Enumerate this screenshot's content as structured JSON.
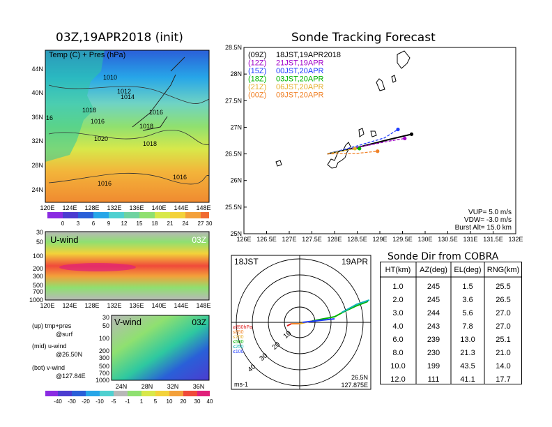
{
  "left": {
    "title": "03Z,19APR2018 (init)",
    "map": {
      "overlay_title": "Temp (C) + Pres (hPa)",
      "lat_ticks": [
        "44N",
        "40N",
        "36N",
        "32N",
        "28N",
        "24N"
      ],
      "lon_ticks": [
        "120E",
        "124E",
        "128E",
        "132E",
        "136E",
        "140E",
        "144E",
        "148E"
      ],
      "isobars": [
        "1010",
        "1012",
        "1014",
        "1018",
        "1016",
        "16",
        "1016",
        "1018",
        "1020",
        "1018",
        "1016",
        "1016"
      ],
      "colorbar": [
        "0",
        "3",
        "6",
        "9",
        "12",
        "15",
        "18",
        "21",
        "24",
        "27",
        "30"
      ]
    },
    "uwind": {
      "title": "U-wind",
      "time": "03Z",
      "p_ticks": [
        "30",
        "50",
        "100",
        "200",
        "300",
        "500",
        "700",
        "1000"
      ],
      "lon_ticks": [
        "120E",
        "124E",
        "128E",
        "132E",
        "136E",
        "140E",
        "144E",
        "148E"
      ]
    },
    "vwind": {
      "title": "V-wind",
      "time": "03Z",
      "p_ticks": [
        "30",
        "50",
        "100",
        "200",
        "300",
        "500",
        "700",
        "1000"
      ],
      "lat_ticks": [
        "24N",
        "28N",
        "32N",
        "36N"
      ]
    },
    "notes": [
      "(up) tmp+pres",
      "@surf",
      "(mid) u-wind",
      "@26.50N",
      "(bot) v-wind",
      "@127.84E"
    ],
    "wind_colorbar": [
      "-40",
      "-30",
      "-20",
      "-10",
      "-5",
      "-1",
      "1",
      "5",
      "10",
      "20",
      "30",
      "40"
    ]
  },
  "track": {
    "title": "Sonde Tracking Forecast",
    "legend": [
      {
        "code": "(09Z)",
        "label": "18JST,19APR2018",
        "color": "#000000"
      },
      {
        "code": "(12Z)",
        "label": "21JST,19APR",
        "color": "#a000c8"
      },
      {
        "code": "(15Z)",
        "label": "00JST,20APR",
        "color": "#1e3cff"
      },
      {
        "code": "(18Z)",
        "label": "03JST,20APR",
        "color": "#00b400"
      },
      {
        "code": "(21Z)",
        "label": "06JST,20APR",
        "color": "#e6af2d"
      },
      {
        "code": "(00Z)",
        "label": "09JST,20APR",
        "color": "#f08228"
      }
    ],
    "info": [
      "VUP= 5.0 m/s",
      "VDW= -3.0 m/s",
      "Burst Alt= 15.0 km"
    ],
    "chart_data": {
      "type": "line",
      "xlabel": "",
      "ylabel": "",
      "xlim": [
        126,
        132
      ],
      "ylim": [
        25,
        28.5
      ],
      "x_ticks": [
        "126E",
        "126.5E",
        "127E",
        "127.5E",
        "128E",
        "128.5E",
        "129E",
        "129.5E",
        "130E",
        "130.5E",
        "131E",
        "131.5E",
        "132E"
      ],
      "y_ticks": [
        "25N",
        "25.5N",
        "26N",
        "26.5N",
        "27N",
        "27.5N",
        "28N",
        "28.5N"
      ],
      "series": [
        {
          "name": "(09Z)",
          "color": "#000000",
          "x": [
            127.84,
            128.5,
            129.2,
            129.7
          ],
          "y": [
            26.5,
            26.62,
            26.77,
            26.87
          ]
        },
        {
          "name": "(12Z)",
          "color": "#a000c8",
          "x": [
            127.84,
            128.5,
            129.2,
            129.55
          ],
          "y": [
            26.5,
            26.62,
            26.74,
            26.79
          ]
        },
        {
          "name": "(15Z)",
          "color": "#1e3cff",
          "x": [
            127.84,
            128.5,
            129.1,
            129.4
          ],
          "y": [
            26.5,
            26.65,
            26.8,
            26.96
          ]
        },
        {
          "name": "(18Z)",
          "color": "#00b400",
          "x": [
            127.84,
            128.3,
            128.55
          ],
          "y": [
            26.5,
            26.58,
            26.6
          ]
        },
        {
          "name": "(21Z)",
          "color": "#e6af2d",
          "x": [
            127.84,
            128.2,
            128.45
          ],
          "y": [
            26.5,
            26.56,
            26.6
          ]
        },
        {
          "name": "(00Z)",
          "color": "#f08228",
          "x": [
            127.84,
            128.5,
            128.95
          ],
          "y": [
            26.5,
            26.51,
            26.55
          ]
        }
      ]
    }
  },
  "polar": {
    "left_label": "18JST",
    "right_label": "19APR",
    "unit": "ms-1",
    "loc_lat": "26.5N",
    "loc_lon": "127.875E",
    "ring_labels": [
      "10",
      "20",
      "30",
      "40"
    ],
    "levels": [
      {
        "label": "≥850hPa",
        "color": "#e01e1e"
      },
      {
        "label": "≤850",
        "color": "#f08228"
      },
      {
        "label": "≤700",
        "color": "#e6af2d"
      },
      {
        "label": "≤500",
        "color": "#00b400"
      },
      {
        "label": "≤250",
        "color": "#14b4b4"
      },
      {
        "label": "≤100",
        "color": "#1e3cff"
      }
    ]
  },
  "cobra": {
    "title": "Sonde Dir from COBRA",
    "headers": [
      "HT(km)",
      "AZ(deg)",
      "EL(deg)",
      "RNG(km)"
    ],
    "rows": [
      [
        "1.0",
        "245",
        "1.5",
        "25.5"
      ],
      [
        "2.0",
        "245",
        "3.6",
        "26.5"
      ],
      [
        "3.0",
        "244",
        "5.6",
        "27.0"
      ],
      [
        "4.0",
        "243",
        "7.8",
        "27.0"
      ],
      [
        "6.0",
        "239",
        "13.0",
        "25.1"
      ],
      [
        "8.0",
        "230",
        "21.3",
        "21.0"
      ],
      [
        "10.0",
        "199",
        "43.5",
        "14.0"
      ],
      [
        "12.0",
        "111",
        "41.1",
        "17.7"
      ]
    ]
  }
}
